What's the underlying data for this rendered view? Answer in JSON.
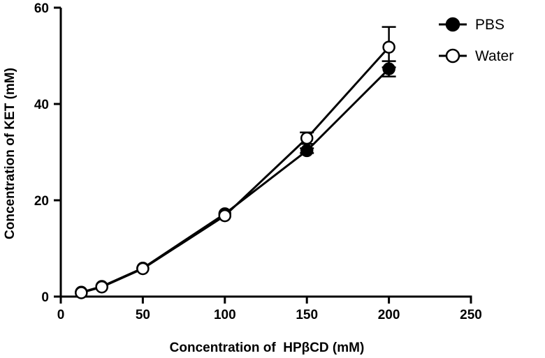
{
  "chart_data": {
    "type": "line",
    "title": "",
    "xlabel": "Concentration of  HPβCD (mM)",
    "ylabel": "Concentration of KET (mM)",
    "xlim": [
      0,
      250
    ],
    "ylim": [
      0,
      60
    ],
    "xticks": [
      0,
      50,
      100,
      150,
      200,
      250
    ],
    "yticks": [
      0,
      20,
      40,
      60
    ],
    "grid": false,
    "legend_position": "top-right",
    "series": [
      {
        "name": "PBS",
        "marker": "filled-circle",
        "x": [
          12.5,
          25,
          50,
          100,
          150,
          200
        ],
        "y": [
          0.9,
          2.1,
          5.9,
          17.2,
          30.3,
          47.3
        ],
        "error": [
          0,
          0,
          0,
          0,
          0.5,
          1.6
        ]
      },
      {
        "name": "Water",
        "marker": "open-circle",
        "x": [
          12.5,
          25,
          50,
          100,
          150,
          200
        ],
        "y": [
          0.8,
          2.0,
          5.8,
          16.8,
          32.9,
          51.8
        ],
        "error": [
          0,
          0,
          0,
          0,
          1.2,
          4.2
        ]
      }
    ]
  },
  "colors": {
    "line": "#000000",
    "background": "#ffffff"
  }
}
